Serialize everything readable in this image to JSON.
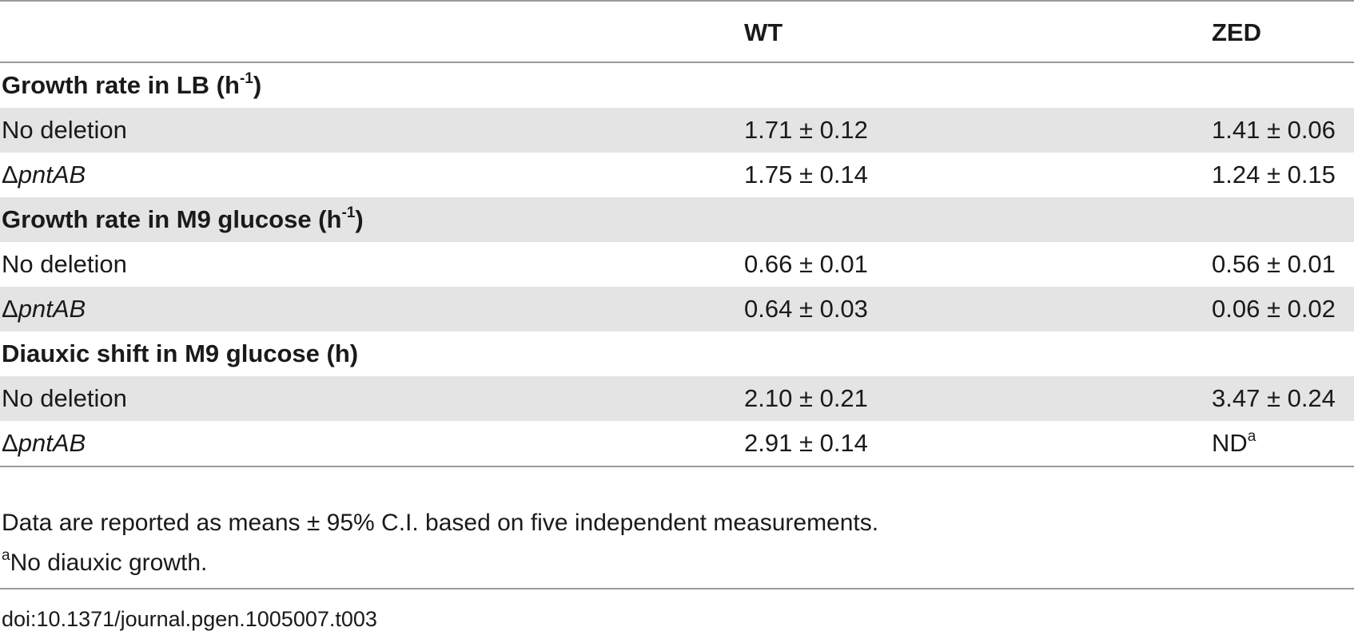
{
  "table": {
    "columns": [
      "",
      "WT",
      "ZED"
    ],
    "sections": [
      {
        "title": "Growth rate in LB (h",
        "title_sup": "-1",
        "title_end": ")",
        "rows": [
          {
            "strain_prefix": "",
            "strain_italic": "",
            "strain": "No deletion",
            "wt": "1.71 ± 0.12",
            "zed": "1.41 ± 0.06",
            "zed_sup": ""
          },
          {
            "strain_prefix": "Δ",
            "strain_italic": "pntAB",
            "strain": "",
            "wt": "1.75 ± 0.14",
            "zed": "1.24 ± 0.15",
            "zed_sup": ""
          }
        ]
      },
      {
        "title": "Growth rate in M9 glucose (h",
        "title_sup": "-1",
        "title_end": ")",
        "rows": [
          {
            "strain_prefix": "",
            "strain_italic": "",
            "strain": "No deletion",
            "wt": "0.66 ± 0.01",
            "zed": "0.56 ± 0.01",
            "zed_sup": ""
          },
          {
            "strain_prefix": "Δ",
            "strain_italic": "pntAB",
            "strain": "",
            "wt": "0.64 ± 0.03",
            "zed": "0.06 ± 0.02",
            "zed_sup": ""
          }
        ]
      },
      {
        "title": "Diauxic shift in M9 glucose (h)",
        "title_sup": "",
        "title_end": "",
        "rows": [
          {
            "strain_prefix": "",
            "strain_italic": "",
            "strain": "No deletion",
            "wt": "2.10 ± 0.21",
            "zed": "3.47 ± 0.24",
            "zed_sup": ""
          },
          {
            "strain_prefix": "Δ",
            "strain_italic": "pntAB",
            "strain": "",
            "wt": "2.91 ± 0.14",
            "zed": "ND",
            "zed_sup": "a"
          }
        ]
      }
    ]
  },
  "notes": {
    "line1": "Data are reported as means ± 95% C.I. based on five independent measurements.",
    "line2_sup": "a",
    "line2": "No diauxic growth."
  },
  "doi": "doi:10.1371/journal.pgen.1005007.t003"
}
